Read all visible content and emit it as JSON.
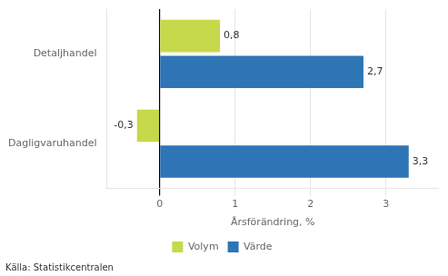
{
  "chart_data": {
    "type": "bar",
    "orientation": "horizontal",
    "categories": [
      "Dagligvaruhandel",
      "Detaljhandel"
    ],
    "series": [
      {
        "name": "Volym",
        "color": "#c6d94b",
        "values": [
          -0.3,
          0.8
        ],
        "value_labels": [
          "-0,3",
          "0,8"
        ]
      },
      {
        "name": "Värde",
        "color": "#2e75b6",
        "values": [
          3.3,
          2.7
        ],
        "value_labels": [
          "3,3",
          "2,7"
        ]
      }
    ],
    "xlabel": "Årsförändring, %",
    "xlim": [
      -0.7,
      3.7
    ],
    "xticks": [
      0,
      1,
      2,
      3
    ],
    "grid": "x",
    "legend": "bottom",
    "data_labels": true,
    "annotations": [
      "Källa: Statistikcentralen"
    ]
  }
}
